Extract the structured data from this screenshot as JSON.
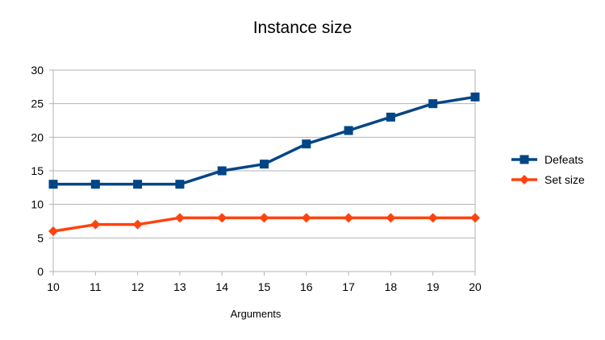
{
  "chart_data": {
    "type": "line",
    "title": "Instance size",
    "xlabel": "Arguments",
    "ylabel": "",
    "x": [
      10,
      11,
      12,
      13,
      14,
      15,
      16,
      17,
      18,
      19,
      20
    ],
    "ylim": [
      0,
      30
    ],
    "yticks": [
      0,
      5,
      10,
      15,
      20,
      25,
      30
    ],
    "grid": true,
    "legend_position": "right",
    "series": [
      {
        "name": "Defeats",
        "values": [
          13,
          13,
          13,
          13,
          15,
          16,
          19,
          21,
          23,
          25,
          26
        ],
        "color": "#004586",
        "marker": "square"
      },
      {
        "name": "Set size",
        "values": [
          6,
          7,
          7,
          8,
          8,
          8,
          8,
          8,
          8,
          8,
          8
        ],
        "color": "#ff420e",
        "marker": "diamond"
      }
    ]
  }
}
